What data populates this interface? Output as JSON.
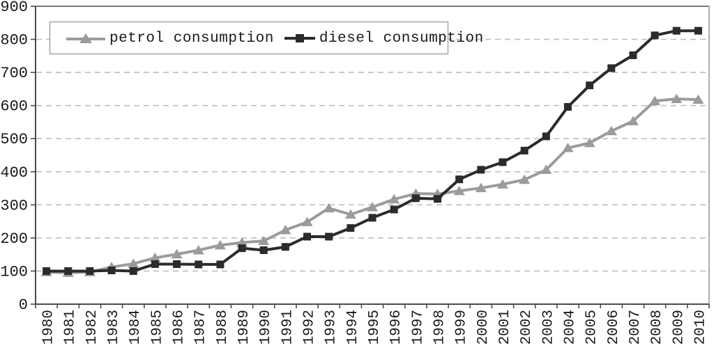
{
  "chart_data": {
    "type": "line",
    "title": "",
    "xlabel": "",
    "ylabel": "",
    "x": [
      "1980",
      "1981",
      "1982",
      "1983",
      "1984",
      "1985",
      "1986",
      "1987",
      "1988",
      "1989",
      "1990",
      "1991",
      "1992",
      "1993",
      "1994",
      "1995",
      "1996",
      "1997",
      "1998",
      "1999",
      "2000",
      "2001",
      "2002",
      "2003",
      "2004",
      "2005",
      "2006",
      "2007",
      "2008",
      "2009",
      "2010"
    ],
    "series": [
      {
        "name": "petrol consumption",
        "marker": "triangle",
        "color": "#9b9b9b",
        "values": [
          97,
          95,
          97,
          112,
          122,
          140,
          151,
          163,
          178,
          186,
          191,
          224,
          248,
          290,
          271,
          293,
          317,
          334,
          333,
          342,
          351,
          362,
          376,
          406,
          472,
          487,
          523,
          553,
          614,
          620,
          618
        ]
      },
      {
        "name": "diesel consumption",
        "marker": "square",
        "color": "#2b2b2b",
        "values": [
          100,
          100,
          100,
          102,
          100,
          121,
          121,
          120,
          120,
          169,
          163,
          173,
          204,
          204,
          230,
          261,
          286,
          320,
          318,
          377,
          406,
          429,
          464,
          507,
          596,
          661,
          713,
          752,
          812,
          826,
          826
        ]
      }
    ],
    "ylim": [
      0,
      900
    ],
    "yticks": [
      0,
      100,
      200,
      300,
      400,
      500,
      600,
      700,
      800,
      900
    ],
    "grid": "horizontal-dashed",
    "legend_position": "top-left",
    "colors": {
      "axis": "#4a4a4a",
      "gridline": "#bdbdbd",
      "plot_border_right": "#9a9a9a",
      "tick_text": "#1a1a1a",
      "background": "#ffffff"
    }
  }
}
